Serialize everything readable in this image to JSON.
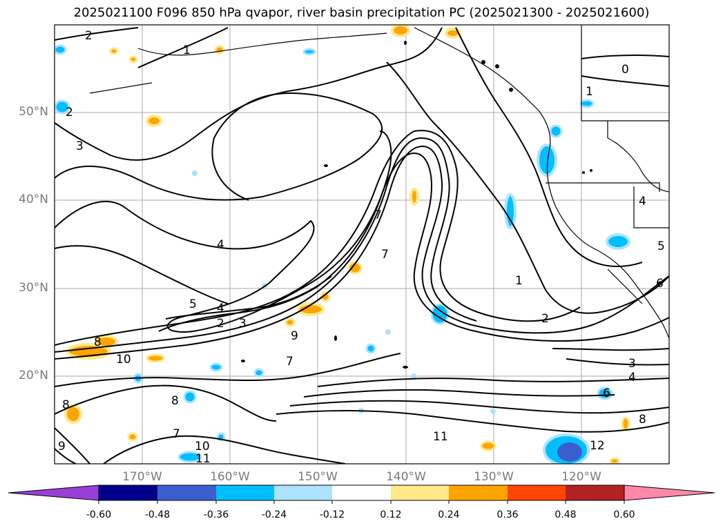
{
  "title": "2025021100 F096 850 hPa qvapor, river basin precipitation PC (2025021300 - 2025021600)",
  "map": {
    "projection": "PlateCarree",
    "lon_range": [
      -180,
      -110
    ],
    "lat_range": [
      10,
      60
    ],
    "lat_ticks": [
      "50°N",
      "40°N",
      "30°N",
      "20°N"
    ],
    "lon_ticks": [
      "170°W",
      "160°W",
      "150°W",
      "140°W",
      "130°W",
      "120°W"
    ],
    "contour_labels": [
      "2",
      "1",
      "3",
      "2",
      "4",
      "5",
      "4",
      "2",
      "3",
      "8",
      "10",
      "9",
      "7",
      "7",
      "7",
      "1",
      "2",
      "0",
      "1",
      "8",
      "8",
      "7",
      "10",
      "11",
      "11",
      "9",
      "12",
      "3",
      "4",
      "6",
      "8",
      "6",
      "5",
      "4"
    ],
    "contour_color": "#000000",
    "coastline_color": "#000000",
    "gridline_color": "#a0a0a0"
  },
  "colorbar": {
    "tick_labels": [
      "-0.60",
      "-0.48",
      "-0.36",
      "-0.24",
      "-0.12",
      "0.12",
      "0.24",
      "0.36",
      "0.48",
      "0.60"
    ],
    "colors": [
      "#9a3fd6",
      "#00008b",
      "#3a5fcd",
      "#00bfff",
      "#aee3ff",
      "#ffffff",
      "#ffe98a",
      "#ffa500",
      "#ff4500",
      "#b22222",
      "#ff88aa"
    ]
  }
}
